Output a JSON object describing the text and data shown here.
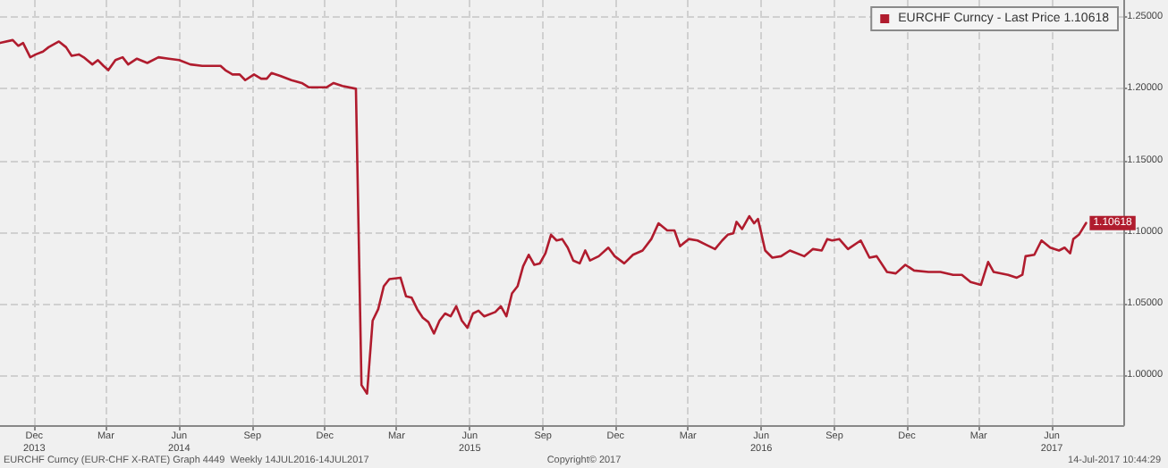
{
  "chart_data": {
    "type": "line",
    "x": [
      "2013-10-19",
      "2013-11-04",
      "2013-11-11",
      "2013-11-17",
      "2013-11-26",
      "2013-12-03",
      "2013-12-12",
      "2013-12-19",
      "2014-01-01",
      "2014-01-10",
      "2014-01-17",
      "2014-01-26",
      "2014-02-01",
      "2014-02-12",
      "2014-02-19",
      "2014-02-26",
      "2014-03-04",
      "2014-03-13",
      "2014-03-22",
      "2014-03-29",
      "2014-04-09",
      "2014-04-22",
      "2014-05-06",
      "2014-05-19",
      "2014-06-01",
      "2014-06-15",
      "2014-06-30",
      "2014-07-09",
      "2014-07-23",
      "2014-07-29",
      "2014-08-07",
      "2014-08-16",
      "2014-08-23",
      "2014-09-03",
      "2014-09-12",
      "2014-09-19",
      "2014-09-25",
      "2014-10-06",
      "2014-10-20",
      "2014-11-02",
      "2014-11-11",
      "2014-11-24",
      "2014-12-03",
      "2014-12-12",
      "2014-12-23",
      "2015-01-09",
      "2015-01-16",
      "2015-01-23",
      "2015-01-30",
      "2015-02-06",
      "2015-02-13",
      "2015-02-20",
      "2015-03-06",
      "2015-03-13",
      "2015-03-20",
      "2015-03-27",
      "2015-04-03",
      "2015-04-10",
      "2015-04-17",
      "2015-04-24",
      "2015-05-01",
      "2015-05-08",
      "2015-05-15",
      "2015-05-22",
      "2015-05-29",
      "2015-06-05",
      "2015-06-12",
      "2015-06-19",
      "2015-07-03",
      "2015-07-10",
      "2015-07-17",
      "2015-07-24",
      "2015-07-31",
      "2015-08-07",
      "2015-08-14",
      "2015-08-21",
      "2015-08-28",
      "2015-09-04",
      "2015-09-11",
      "2015-09-18",
      "2015-09-25",
      "2015-10-02",
      "2015-10-09",
      "2015-10-17",
      "2015-10-24",
      "2015-10-30",
      "2015-11-10",
      "2015-11-22",
      "2015-11-30",
      "2015-12-12",
      "2015-12-23",
      "2016-01-04",
      "2016-01-15",
      "2016-01-24",
      "2016-02-04",
      "2016-02-13",
      "2016-02-20",
      "2016-03-02",
      "2016-03-13",
      "2016-03-24",
      "2016-04-04",
      "2016-04-13",
      "2016-04-20",
      "2016-04-27",
      "2016-05-01",
      "2016-05-08",
      "2016-05-17",
      "2016-05-23",
      "2016-05-28",
      "2016-06-06",
      "2016-06-15",
      "2016-06-26",
      "2016-07-07",
      "2016-07-25",
      "2016-08-05",
      "2016-08-16",
      "2016-08-23",
      "2016-08-29",
      "2016-09-07",
      "2016-09-18",
      "2016-10-04",
      "2016-10-15",
      "2016-10-24",
      "2016-11-06",
      "2016-11-17",
      "2016-11-29",
      "2016-12-10",
      "2016-12-28",
      "2017-01-12",
      "2017-01-28",
      "2017-02-08",
      "2017-02-19",
      "2017-03-04",
      "2017-03-13",
      "2017-03-20",
      "2017-04-07",
      "2017-04-18",
      "2017-04-25",
      "2017-04-29",
      "2017-05-10",
      "2017-05-19",
      "2017-05-30",
      "2017-06-10",
      "2017-06-17",
      "2017-06-24",
      "2017-06-28",
      "2017-07-05",
      "2017-07-14"
    ],
    "series": [
      {
        "name": "EURCHF Curncy - Last Price 1.10618",
        "color": "#b01c2e",
        "values": [
          1.232,
          1.234,
          1.23,
          1.232,
          1.222,
          1.224,
          1.226,
          1.229,
          1.233,
          1.229,
          1.223,
          1.224,
          1.222,
          1.217,
          1.22,
          1.216,
          1.213,
          1.22,
          1.222,
          1.217,
          1.221,
          1.218,
          1.222,
          1.221,
          1.22,
          1.217,
          1.216,
          1.216,
          1.216,
          1.213,
          1.21,
          1.21,
          1.206,
          1.21,
          1.207,
          1.207,
          1.211,
          1.209,
          1.206,
          1.204,
          1.201,
          1.201,
          1.201,
          1.204,
          1.202,
          1.2,
          0.993,
          0.987,
          1.038,
          1.046,
          1.062,
          1.067,
          1.068,
          1.055,
          1.054,
          1.046,
          1.04,
          1.037,
          1.029,
          1.038,
          1.043,
          1.041,
          1.048,
          1.038,
          1.033,
          1.043,
          1.045,
          1.041,
          1.044,
          1.048,
          1.041,
          1.057,
          1.062,
          1.076,
          1.084,
          1.077,
          1.078,
          1.085,
          1.098,
          1.094,
          1.095,
          1.089,
          1.08,
          1.078,
          1.087,
          1.08,
          1.083,
          1.089,
          1.083,
          1.078,
          1.084,
          1.087,
          1.095,
          1.106,
          1.101,
          1.101,
          1.09,
          1.095,
          1.094,
          1.091,
          1.088,
          1.094,
          1.098,
          1.099,
          1.107,
          1.102,
          1.111,
          1.106,
          1.109,
          1.087,
          1.082,
          1.083,
          1.087,
          1.083,
          1.088,
          1.087,
          1.095,
          1.094,
          1.095,
          1.088,
          1.094,
          1.082,
          1.083,
          1.072,
          1.071,
          1.077,
          1.073,
          1.072,
          1.072,
          1.07,
          1.07,
          1.065,
          1.063,
          1.079,
          1.072,
          1.07,
          1.068,
          1.07,
          1.083,
          1.084,
          1.094,
          1.089,
          1.087,
          1.089,
          1.085,
          1.095,
          1.098,
          1.10618
        ],
        "value_labels": [
          null,
          null,
          null,
          null,
          null,
          null,
          null,
          null,
          null,
          null,
          null,
          null,
          null,
          null,
          null,
          null,
          null,
          null,
          null,
          null,
          null,
          null,
          null,
          null,
          null,
          null,
          null,
          null,
          null,
          null,
          null,
          null,
          null,
          null,
          null,
          null,
          null,
          null,
          null,
          null,
          null,
          null,
          null,
          null,
          null,
          null,
          null,
          null,
          null,
          null,
          null,
          null,
          null,
          null,
          null,
          null,
          null,
          null,
          null,
          null,
          null,
          null,
          null,
          null,
          null,
          null,
          null,
          null,
          null,
          null,
          null,
          null,
          null,
          null,
          null,
          null,
          null,
          null,
          null,
          null,
          null,
          null,
          null,
          null,
          null,
          null,
          null,
          null,
          null,
          null,
          null,
          null,
          null,
          null,
          null,
          null,
          null,
          null,
          null,
          null,
          null,
          null,
          null,
          null,
          null,
          null,
          null,
          null,
          null,
          null,
          null,
          null,
          null,
          null,
          null,
          null,
          null,
          null,
          null,
          null,
          null,
          null,
          null,
          null,
          null,
          null,
          null,
          null,
          null,
          null,
          null,
          null,
          null,
          null,
          null,
          null,
          null,
          null,
          null,
          null,
          null,
          null,
          null,
          null,
          null,
          null,
          null,
          "1.10618"
        ]
      }
    ],
    "xlim": [
      "2013-10-19",
      "2017-08-30"
    ],
    "xticks": [
      {
        "value": "2013-12-01",
        "label": "Dec\n2013"
      },
      {
        "value": "2014-03-01",
        "label": "Mar"
      },
      {
        "value": "2014-06-01",
        "label": "Jun\n2014"
      },
      {
        "value": "2014-09-01",
        "label": "Sep"
      },
      {
        "value": "2014-12-01",
        "label": "Dec"
      },
      {
        "value": "2015-03-01",
        "label": "Mar"
      },
      {
        "value": "2015-06-01",
        "label": "Jun\n2015"
      },
      {
        "value": "2015-09-01",
        "label": "Sep"
      },
      {
        "value": "2015-12-01",
        "label": "Dec"
      },
      {
        "value": "2016-03-01",
        "label": "Mar"
      },
      {
        "value": "2016-06-01",
        "label": "Jun\n2016"
      },
      {
        "value": "2016-09-01",
        "label": "Sep"
      },
      {
        "value": "2016-12-01",
        "label": "Dec"
      },
      {
        "value": "2017-03-01",
        "label": "Mar"
      },
      {
        "value": "2017-06-01",
        "label": "Jun\n2017"
      }
    ],
    "ylim": [
      0.965,
      1.262
    ],
    "yticks": [
      {
        "value": 1.0,
        "label": "1.00000"
      },
      {
        "value": 1.05,
        "label": "1.05000"
      },
      {
        "value": 1.1,
        "label": "1.10000"
      },
      {
        "value": 1.15,
        "label": "1.15000"
      },
      {
        "value": 1.2,
        "label": "1.20000"
      },
      {
        "value": 1.25,
        "label": "1.25000"
      }
    ],
    "grid": true,
    "legend": "top right",
    "marker": "none",
    "line_style": "solid",
    "annotations": [
      "EURCHF Curncy (EUR-CHF X-RATE) Graph 4449  Weekly 14JUL2016-14JUL2017",
      "Copyright© 2017",
      "14-Jul-2017 10:44:29"
    ]
  }
}
